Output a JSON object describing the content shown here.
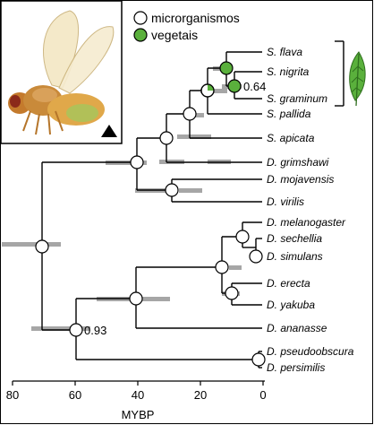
{
  "legend": {
    "microorganisms_label": "microrganismos",
    "plants_label": "vegetais"
  },
  "axis": {
    "title": "MYBP",
    "ticks": [
      "80",
      "60",
      "40",
      "20",
      "0"
    ]
  },
  "taxa": [
    {
      "id": "s_flava",
      "label": "S. flava"
    },
    {
      "id": "s_nigrita",
      "label": "S. nigrita"
    },
    {
      "id": "s_graminum",
      "label": "S. graminum"
    },
    {
      "id": "s_pallida",
      "label": "S. pallida"
    },
    {
      "id": "s_apicata",
      "label": "S. apicata"
    },
    {
      "id": "d_grimshawi",
      "label": "D. grimshawi"
    },
    {
      "id": "d_mojavensis",
      "label": "D. mojavensis"
    },
    {
      "id": "d_virilis",
      "label": "D. virilis"
    },
    {
      "id": "d_melanogaster",
      "label": "D. melanogaster"
    },
    {
      "id": "d_sechellia",
      "label": "D. sechellia"
    },
    {
      "id": "d_simulans",
      "label": "D. simulans"
    },
    {
      "id": "d_erecta",
      "label": "D. erecta"
    },
    {
      "id": "d_yakuba",
      "label": "D. yakuba"
    },
    {
      "id": "d_ananasse",
      "label": "D. ananasse"
    },
    {
      "id": "d_pseudoobscura",
      "label": "D. pseudoobscura"
    },
    {
      "id": "d_persimilis",
      "label": "D. persimilis"
    }
  ],
  "support_values": {
    "graminum_node": "0.64",
    "root_node": "0.93"
  },
  "colors": {
    "plant": "#5ab03c",
    "microbe": "#ffffff",
    "confidence_bar": "#a6a6a6",
    "triangle_marker": "#000000"
  },
  "icons": {
    "photo": "fly-photo",
    "diet_icon": "leaf-icon",
    "marker": "triangle-marker"
  }
}
